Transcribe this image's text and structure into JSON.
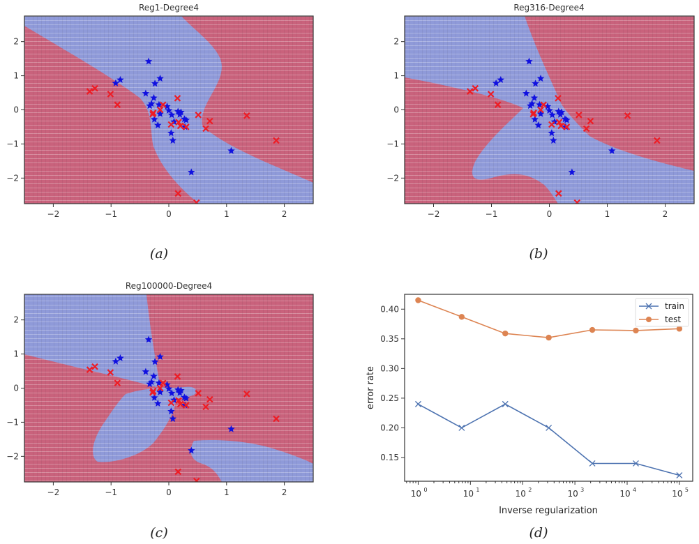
{
  "chart_data": [
    {
      "type": "scatter",
      "panel": "a",
      "title": "Reg1-Degree4",
      "caption": "(a)",
      "xlim": [
        -2.5,
        2.5
      ],
      "ylim": [
        -2.75,
        2.75
      ],
      "xticks": [
        -2,
        -1,
        0,
        1,
        2
      ],
      "yticks": [
        -2,
        -1,
        0,
        1,
        2
      ],
      "xtick_labels": [
        "−2",
        "−1",
        "0",
        "1",
        "2"
      ],
      "ytick_labels": [
        "−2",
        "−1",
        "0",
        "1",
        "2"
      ],
      "background": "decision regions (blue = star class, red = x class)",
      "region_colors": {
        "blue": "#8f9ad9",
        "red": "#c9627c"
      },
      "boundary": "wide blue diagonal band from upper-left to lower-right"
    },
    {
      "type": "scatter",
      "panel": "b",
      "title": "Reg316-Degree4",
      "caption": "(b)",
      "xlim": [
        -2.5,
        2.5
      ],
      "ylim": [
        -2.75,
        2.75
      ],
      "xticks": [
        -2,
        -1,
        0,
        1,
        2
      ],
      "yticks": [
        -2,
        -1,
        0,
        1,
        2
      ],
      "xtick_labels": [
        "−2",
        "−1",
        "0",
        "1",
        "2"
      ],
      "ytick_labels": [
        "−2",
        "−1",
        "0",
        "1",
        "2"
      ],
      "region_colors": {
        "blue": "#8f9ad9",
        "red": "#c9627c"
      },
      "boundary": "blue wedge upper-left plus curved blue lobe lower-center/right"
    },
    {
      "type": "scatter",
      "panel": "c",
      "title": "Reg100000-Degree4",
      "caption": "(c)",
      "xlim": [
        -2.5,
        2.5
      ],
      "ylim": [
        -2.75,
        2.75
      ],
      "xticks": [
        -2,
        -1,
        0,
        1,
        2
      ],
      "yticks": [
        -2,
        -1,
        0,
        1,
        2
      ],
      "xtick_labels": [
        "−2",
        "−1",
        "0",
        "1",
        "2"
      ],
      "ytick_labels": [
        "−2",
        "−1",
        "0",
        "1",
        "2"
      ],
      "region_colors": {
        "blue": "#8f9ad9",
        "red": "#c9627c"
      },
      "boundary": "blue wedge upper-left, blue ellipse lower-left, blue lobe lower-right"
    },
    {
      "type": "line",
      "panel": "d",
      "caption": "(d)",
      "title": "",
      "xlabel": "Inverse regularization",
      "ylabel": "error rate",
      "xscale": "log",
      "xlim": [
        0.55,
        180000
      ],
      "ylim": [
        0.11,
        0.425
      ],
      "xticks": [
        1,
        10,
        100,
        1000,
        10000,
        100000
      ],
      "xtick_labels": [
        [
          "10",
          "0"
        ],
        [
          "10",
          "1"
        ],
        [
          "10",
          "2"
        ],
        [
          "10",
          "3"
        ],
        [
          "10",
          "4"
        ],
        [
          "10",
          "5"
        ]
      ],
      "yticks": [
        0.15,
        0.2,
        0.25,
        0.3,
        0.35,
        0.4
      ],
      "ytick_labels": [
        "0.15",
        "0.20",
        "0.25",
        "0.30",
        "0.35",
        "0.40"
      ],
      "x": [
        1,
        6.81,
        46.4,
        316,
        2154,
        14678,
        100000
      ],
      "legend_position": "top-right",
      "series": [
        {
          "name": "train",
          "marker": "x",
          "color": "#4c72b0",
          "values": [
            0.24,
            0.2,
            0.24,
            0.2,
            0.14,
            0.14,
            0.12
          ]
        },
        {
          "name": "test",
          "marker": "o",
          "color": "#dd8452",
          "values": [
            0.415,
            0.387,
            0.359,
            0.352,
            0.365,
            0.364,
            0.367
          ]
        }
      ]
    }
  ],
  "points": {
    "star_color": "#1010e0",
    "x_color": "#ee1c24",
    "stars": [
      [
        -0.35,
        1.42
      ],
      [
        -0.84,
        0.88
      ],
      [
        -0.92,
        0.78
      ],
      [
        -0.15,
        0.92
      ],
      [
        -0.24,
        0.77
      ],
      [
        -0.4,
        0.48
      ],
      [
        -0.26,
        0.35
      ],
      [
        -0.3,
        0.18
      ],
      [
        -0.33,
        0.12
      ],
      [
        -0.17,
        0.15
      ],
      [
        -0.03,
        0.1
      ],
      [
        0.0,
        -0.02
      ],
      [
        -0.15,
        -0.12
      ],
      [
        0.05,
        -0.15
      ],
      [
        -0.25,
        -0.28
      ],
      [
        -0.19,
        -0.45
      ],
      [
        0.09,
        -0.35
      ],
      [
        0.16,
        -0.05
      ],
      [
        0.21,
        -0.07
      ],
      [
        0.19,
        -0.14
      ],
      [
        0.27,
        -0.27
      ],
      [
        0.3,
        -0.3
      ],
      [
        0.28,
        -0.5
      ],
      [
        0.04,
        -0.68
      ],
      [
        0.07,
        -0.9
      ],
      [
        1.08,
        -1.2
      ],
      [
        0.39,
        -1.83
      ]
    ],
    "crosses": [
      [
        -1.37,
        0.54
      ],
      [
        -1.28,
        0.63
      ],
      [
        -1.01,
        0.46
      ],
      [
        -0.89,
        0.15
      ],
      [
        0.15,
        0.34
      ],
      [
        -0.1,
        0.15
      ],
      [
        -0.15,
        0.0
      ],
      [
        -0.27,
        -0.09
      ],
      [
        -0.28,
        -0.13
      ],
      [
        0.04,
        -0.43
      ],
      [
        0.17,
        -0.36
      ],
      [
        0.2,
        -0.47
      ],
      [
        0.3,
        -0.5
      ],
      [
        0.51,
        -0.15
      ],
      [
        0.71,
        -0.33
      ],
      [
        0.64,
        -0.55
      ],
      [
        1.35,
        -0.17
      ],
      [
        1.86,
        -0.9
      ],
      [
        0.16,
        -2.45
      ],
      [
        0.48,
        -2.72
      ]
    ]
  }
}
